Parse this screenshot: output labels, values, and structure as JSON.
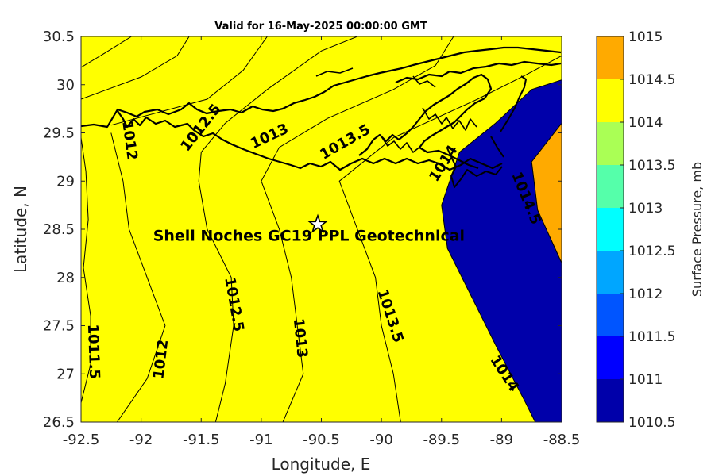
{
  "chart_data": {
    "type": "heatmap",
    "subtype": "filled-contour map",
    "title": "Valid for 16-May-2025 00:00:00 GMT",
    "xlabel": "Longitude, E",
    "ylabel": "Latitude, N",
    "xlim": [
      -92.5,
      -88.5
    ],
    "ylim": [
      26.5,
      30.5
    ],
    "x_ticks": [
      "-92.5",
      "-92",
      "-91.5",
      "-91",
      "-90.5",
      "-90",
      "-89.5",
      "-89",
      "-88.5"
    ],
    "y_ticks": [
      "26.5",
      "27",
      "27.5",
      "28",
      "28.5",
      "29",
      "29.5",
      "30",
      "30.5"
    ],
    "grid": false,
    "colorbar": {
      "label": "Surface Pressure, mb",
      "levels": [
        1010.5,
        1011,
        1011.5,
        1012,
        1012.5,
        1013,
        1013.5,
        1014,
        1014.5,
        1015
      ],
      "tick_labels": [
        "1010.5",
        "1011",
        "1011.5",
        "1012",
        "1012.5",
        "1013",
        "1013.5",
        "1014",
        "1014.5",
        "1015"
      ],
      "band_colors": [
        "#0000aa",
        "#0000ff",
        "#0055ff",
        "#00a6ff",
        "#00ffff",
        "#55ffaa",
        "#aaff55",
        "#ffff00",
        "#ffaa00"
      ]
    },
    "isobars": [
      {
        "value": 1011,
        "path": [
          [
            -92.5,
            30.18
          ],
          [
            -92.3,
            30.33
          ],
          [
            -92.08,
            30.5
          ]
        ]
      },
      {
        "value": 1011.5,
        "path": [
          [
            -92.5,
            26.7
          ],
          [
            -92.42,
            27.1
          ],
          [
            -92.42,
            27.6
          ],
          [
            -92.48,
            28.1
          ],
          [
            -92.44,
            28.6
          ],
          [
            -92.46,
            29.1
          ],
          [
            -92.5,
            29.45
          ]
        ]
      },
      {
        "value": 1011.5,
        "path": [
          [
            -92.5,
            29.85
          ],
          [
            -92.0,
            30.08
          ],
          [
            -91.7,
            30.3
          ],
          [
            -91.6,
            30.5
          ]
        ]
      },
      {
        "value": 1012,
        "path": [
          [
            -92.2,
            26.5
          ],
          [
            -91.95,
            26.95
          ],
          [
            -91.8,
            27.5
          ],
          [
            -91.95,
            28.0
          ],
          [
            -92.1,
            28.5
          ],
          [
            -92.15,
            29.0
          ],
          [
            -92.25,
            29.5
          ]
        ]
      },
      {
        "value": 1012,
        "path": [
          [
            -92.25,
            29.58
          ],
          [
            -91.45,
            29.85
          ],
          [
            -91.15,
            30.15
          ],
          [
            -90.95,
            30.5
          ]
        ]
      },
      {
        "value": 1012.5,
        "path": [
          [
            -91.38,
            26.5
          ],
          [
            -91.3,
            26.9
          ],
          [
            -91.23,
            27.5
          ],
          [
            -91.25,
            28.0
          ],
          [
            -91.45,
            28.5
          ],
          [
            -91.52,
            29.0
          ],
          [
            -91.5,
            29.3
          ],
          [
            -91.3,
            29.6
          ],
          [
            -90.95,
            29.95
          ],
          [
            -90.5,
            30.35
          ],
          [
            -90.2,
            30.5
          ]
        ]
      },
      {
        "value": 1013,
        "path": [
          [
            -90.82,
            26.5
          ],
          [
            -90.65,
            27.0
          ],
          [
            -90.7,
            27.5
          ],
          [
            -90.75,
            28.0
          ],
          [
            -90.85,
            28.5
          ],
          [
            -91.0,
            29.0
          ],
          [
            -90.85,
            29.35
          ],
          [
            -90.45,
            29.65
          ],
          [
            -89.9,
            29.95
          ],
          [
            -89.55,
            30.2
          ],
          [
            -89.4,
            30.5
          ]
        ]
      },
      {
        "value": 1013.5,
        "path": [
          [
            -89.84,
            26.5
          ],
          [
            -89.9,
            27.0
          ],
          [
            -90.0,
            27.5
          ],
          [
            -90.05,
            28.0
          ],
          [
            -90.2,
            28.5
          ],
          [
            -90.35,
            29.0
          ],
          [
            -89.9,
            29.45
          ],
          [
            -89.2,
            29.85
          ],
          [
            -88.8,
            30.1
          ],
          [
            -88.5,
            30.3
          ]
        ]
      },
      {
        "value": 1014,
        "path": [
          [
            -88.72,
            26.5
          ],
          [
            -88.8,
            26.7
          ],
          [
            -89.05,
            27.3
          ],
          [
            -89.25,
            27.8
          ],
          [
            -89.45,
            28.3
          ],
          [
            -89.5,
            28.75
          ],
          [
            -89.35,
            29.3
          ],
          [
            -89.05,
            29.6
          ],
          [
            -88.75,
            29.95
          ],
          [
            -88.5,
            30.05
          ]
        ]
      },
      {
        "value": 1014.5,
        "path": [
          [
            -88.5,
            28.15
          ],
          [
            -88.7,
            28.7
          ],
          [
            -88.75,
            29.2
          ],
          [
            -88.5,
            29.6
          ]
        ]
      }
    ],
    "contour_labels": [
      {
        "text": "1012",
        "lon": -92.1,
        "lat": 29.42,
        "angle": 82
      },
      {
        "text": "1012.5",
        "lon": -91.5,
        "lat": 29.55,
        "angle": -52
      },
      {
        "text": "1013",
        "lon": -90.93,
        "lat": 29.46,
        "angle": -25
      },
      {
        "text": "1013.5",
        "lon": -90.3,
        "lat": 29.4,
        "angle": -30
      },
      {
        "text": "1014",
        "lon": -89.48,
        "lat": 29.18,
        "angle": -58
      },
      {
        "text": "1014.5",
        "lon": -88.8,
        "lat": 28.82,
        "angle": 68
      },
      {
        "text": "1011.5",
        "lon": -92.4,
        "lat": 27.23,
        "angle": 88
      },
      {
        "text": "1012",
        "lon": -91.83,
        "lat": 27.15,
        "angle": -83
      },
      {
        "text": "1012.5",
        "lon": -91.23,
        "lat": 27.72,
        "angle": 80
      },
      {
        "text": "1013",
        "lon": -90.68,
        "lat": 27.37,
        "angle": 84
      },
      {
        "text": "1013.5",
        "lon": -89.93,
        "lat": 27.6,
        "angle": 72
      },
      {
        "text": "1014",
        "lon": -88.98,
        "lat": 27.0,
        "angle": 57
      }
    ],
    "annotation": {
      "text": "Shell Noches   GC19 PPL  Geotechnical",
      "lon": -90.83,
      "lat": 28.43
    },
    "site_marker": {
      "symbol": "star",
      "lon": -90.53,
      "lat": 28.55
    }
  }
}
